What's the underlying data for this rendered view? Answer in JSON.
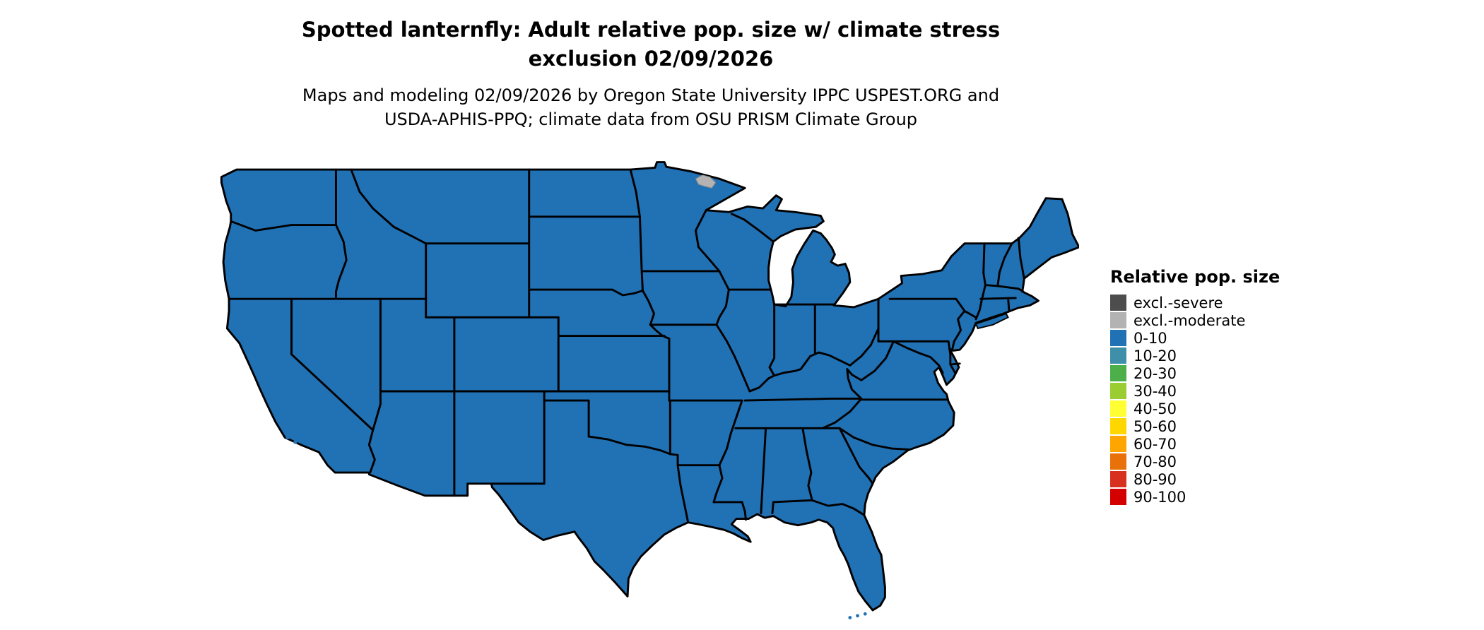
{
  "title": {
    "line1": "Spotted lanternfly: Adult relative pop. size w/ climate stress",
    "line2": "exclusion 02/09/2026"
  },
  "subtitle": {
    "line1": "Maps and modeling 02/09/2026 by Oregon State University IPPC USPEST.ORG and",
    "line2": "USDA-APHIS-PPQ; climate data from OSU PRISM Climate Group"
  },
  "legend": {
    "title": "Relative pop. size",
    "entries": [
      {
        "label": "excl.-severe",
        "color": "#4d4d4d"
      },
      {
        "label": "excl.-moderate",
        "color": "#b3b3b3"
      },
      {
        "label": "0-10",
        "color": "#2171b5"
      },
      {
        "label": "10-20",
        "color": "#3f8fa8"
      },
      {
        "label": "20-30",
        "color": "#4daf4a"
      },
      {
        "label": "30-40",
        "color": "#9acd32"
      },
      {
        "label": "40-50",
        "color": "#ffff33"
      },
      {
        "label": "50-60",
        "color": "#ffd700"
      },
      {
        "label": "60-70",
        "color": "#ffa500"
      },
      {
        "label": "70-80",
        "color": "#e8710a"
      },
      {
        "label": "80-90",
        "color": "#d7301f"
      },
      {
        "label": "90-100",
        "color": "#d40000"
      }
    ]
  },
  "map": {
    "region": "Contiguous United States",
    "all_visible_states_class": "0-10",
    "fill_color": "#2171b5",
    "border_color": "#000000",
    "background_color": "#ffffff",
    "excluded_areas": [
      {
        "area": "northern Minnesota border region",
        "class": "excl.-moderate",
        "color": "#b3b3b3"
      }
    ]
  }
}
